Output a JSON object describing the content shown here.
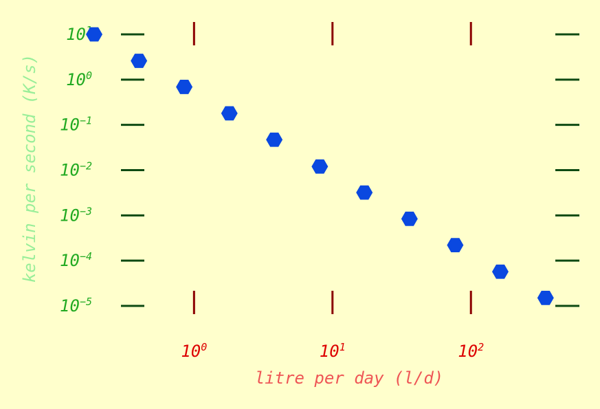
{
  "chart_data": {
    "type": "scatter",
    "xlabel": "litre per day (l/d)",
    "ylabel": "kelvin per second (K/s)",
    "x_scale": "log",
    "y_scale": "log",
    "xlim": [
      0.16,
      380
    ],
    "ylim": [
      1e-05,
      10
    ],
    "x_ticks": [
      {
        "base": "10",
        "exp": "0"
      },
      {
        "base": "10",
        "exp": "1"
      },
      {
        "base": "10",
        "exp": "2"
      }
    ],
    "y_ticks": [
      {
        "base": "10",
        "exp": "1"
      },
      {
        "base": "10",
        "exp": "0"
      },
      {
        "base": "10",
        "exp": "−1"
      },
      {
        "base": "10",
        "exp": "−2"
      },
      {
        "base": "10",
        "exp": "−3"
      },
      {
        "base": "10",
        "exp": "−4"
      },
      {
        "base": "10",
        "exp": "−5"
      }
    ],
    "x_tick_values": [
      1,
      10,
      100
    ],
    "y_tick_values": [
      10,
      1,
      0.1,
      0.01,
      0.001,
      0.0001,
      1e-05
    ],
    "series": [
      {
        "marker": "hexagon",
        "x": [
          0.19,
          0.4,
          0.85,
          1.8,
          3.8,
          8.1,
          17,
          36,
          77,
          163,
          346
        ],
        "y": [
          10,
          2.6,
          0.69,
          0.18,
          0.047,
          0.012,
          0.0032,
          0.00084,
          0.00022,
          5.7e-05,
          1.5e-05
        ]
      }
    ],
    "colors": {
      "background": "#ffffcc",
      "marker": "#0a48e0",
      "y_tick_marks": "#0d4a12",
      "y_tick_labels": "#22aa22",
      "y_axis_title": "#99ee99",
      "x_tick_marks": "#8b0000",
      "x_tick_labels": "#dd0000",
      "x_axis_title": "#ee5555"
    },
    "grid": false,
    "legend": "none"
  }
}
